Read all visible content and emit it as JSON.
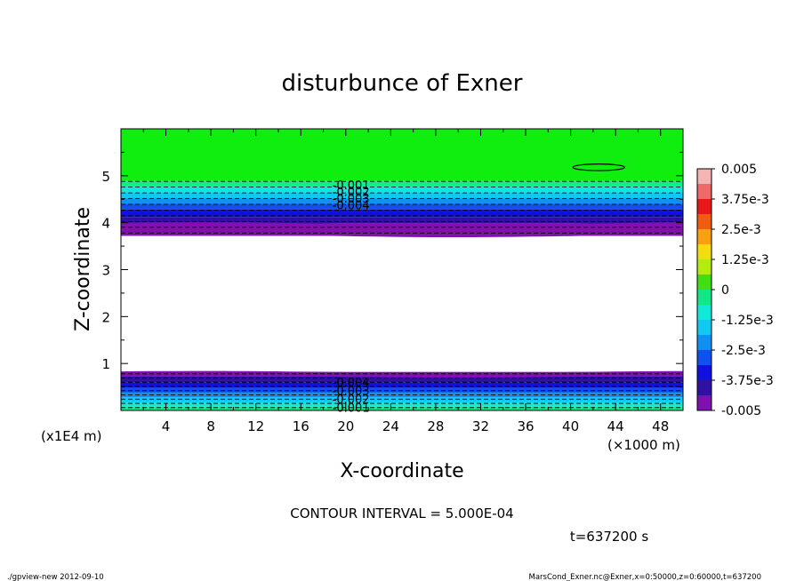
{
  "chart_data": {
    "type": "heatmap",
    "title": "disturbunce of Exner",
    "xlabel": "X-coordinate",
    "ylabel": "Z-coordinate",
    "x_unit_label": "(×1000 m)",
    "y_unit_label": "(x1E4 m)",
    "xlim": [
      0,
      50
    ],
    "ylim": [
      0,
      6
    ],
    "xticks": [
      "4",
      "8",
      "12",
      "16",
      "20",
      "24",
      "28",
      "32",
      "36",
      "40",
      "44",
      "48"
    ],
    "yticks": [
      "1",
      "2",
      "3",
      "4",
      "5"
    ],
    "contour_interval_text": "CONTOUR INTERVAL = 5.000E-04",
    "time_text": "t=637200 s",
    "contour_labels_upper": [
      "-0.001",
      "-0.002",
      "-0.003",
      "-0.004"
    ],
    "contour_labels_lower": [
      "-0.004",
      "-0.003",
      "-0.002",
      "-0.001"
    ],
    "colorbar": {
      "labels": [
        "0.005",
        "3.75e-3",
        "2.5e-3",
        "1.25e-3",
        "0",
        "-1.25e-3",
        "-2.5e-3",
        "-3.75e-3",
        "-0.005"
      ],
      "colors": [
        "#f4b4b4",
        "#ee6a6a",
        "#e81818",
        "#f05c10",
        "#f8a010",
        "#f2de10",
        "#b4ec10",
        "#40e010",
        "#10e888",
        "#10e8d8",
        "#10c8f0",
        "#1090f0",
        "#1050f0",
        "#1010e0",
        "#3010a0",
        "#8010b0"
      ]
    },
    "bands_upper": [
      {
        "z_top": 6.0,
        "z_bottom": 4.9,
        "color": "#10ee10"
      },
      {
        "z_top": 4.9,
        "z_bottom": 4.78,
        "color": "#10ee88"
      },
      {
        "z_top": 4.78,
        "z_bottom": 4.65,
        "color": "#10e8d8"
      },
      {
        "z_top": 4.65,
        "z_bottom": 4.52,
        "color": "#10c8f0"
      },
      {
        "z_top": 4.52,
        "z_bottom": 4.4,
        "color": "#1090f0"
      },
      {
        "z_top": 4.4,
        "z_bottom": 4.28,
        "color": "#1050f0"
      },
      {
        "z_top": 4.28,
        "z_bottom": 4.12,
        "color": "#1010e0"
      },
      {
        "z_top": 4.12,
        "z_bottom": 3.98,
        "color": "#3010a0"
      },
      {
        "z_top": 3.98,
        "z_bottom": 3.72,
        "color": "#8010b0"
      }
    ],
    "bands_lower": [
      {
        "z_top": 0.82,
        "z_bottom": 0.72,
        "color": "#8010b0"
      },
      {
        "z_top": 0.72,
        "z_bottom": 0.6,
        "color": "#3010a0"
      },
      {
        "z_top": 0.6,
        "z_bottom": 0.48,
        "color": "#1010e0"
      },
      {
        "z_top": 0.48,
        "z_bottom": 0.38,
        "color": "#1050f0"
      },
      {
        "z_top": 0.38,
        "z_bottom": 0.28,
        "color": "#1090f0"
      },
      {
        "z_top": 0.28,
        "z_bottom": 0.18,
        "color": "#10c8f0"
      },
      {
        "z_top": 0.18,
        "z_bottom": 0.08,
        "color": "#10e8d8"
      },
      {
        "z_top": 0.08,
        "z_bottom": 0.0,
        "color": "#10ee88"
      }
    ],
    "closed_contour": {
      "x_center": 42.5,
      "z_center": 5.18,
      "x_halfwidth": 2.3,
      "z_halfheight": 0.07
    }
  },
  "footer": {
    "left": "./gpview-new   2012-09-10",
    "right": "MarsCond_Exner.nc@Exner,x=0:50000,z=0:60000,t=637200"
  }
}
